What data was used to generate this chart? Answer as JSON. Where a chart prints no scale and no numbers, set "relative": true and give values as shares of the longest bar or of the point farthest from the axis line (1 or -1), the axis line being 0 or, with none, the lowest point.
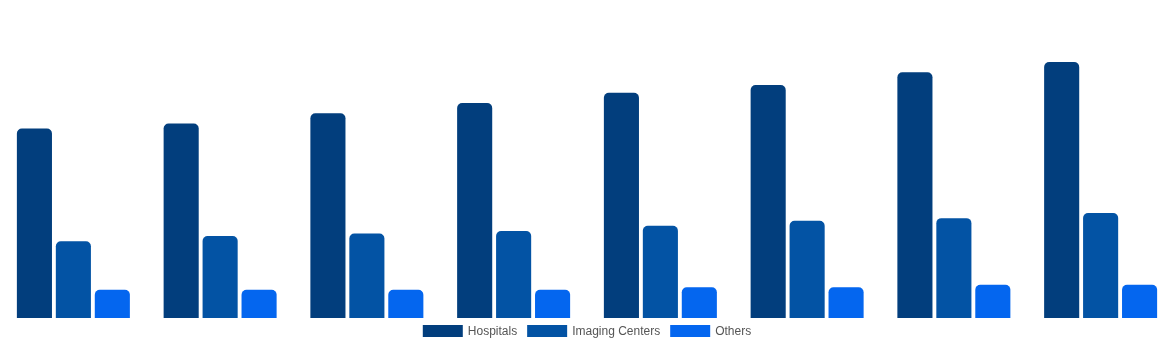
{
  "chart_data": {
    "type": "bar",
    "relative": true,
    "categories": [
      null,
      null,
      null,
      null,
      null,
      null,
      null,
      null
    ],
    "series": [
      {
        "name": "Hospitals",
        "color": "#023e7d",
        "values": [
          0.74,
          0.76,
          0.8,
          0.84,
          0.88,
          0.91,
          0.96,
          1
        ]
      },
      {
        "name": "Imaging Centers",
        "color": "#0353a4",
        "values": [
          0.3,
          0.32,
          0.33,
          0.34,
          0.36,
          0.38,
          0.39,
          0.41
        ]
      },
      {
        "name": "Others",
        "color": "#0466ef",
        "values": [
          0.11,
          0.11,
          0.11,
          0.11,
          0.12,
          0.12,
          0.13,
          0.13
        ]
      }
    ],
    "legend": "bottom"
  }
}
